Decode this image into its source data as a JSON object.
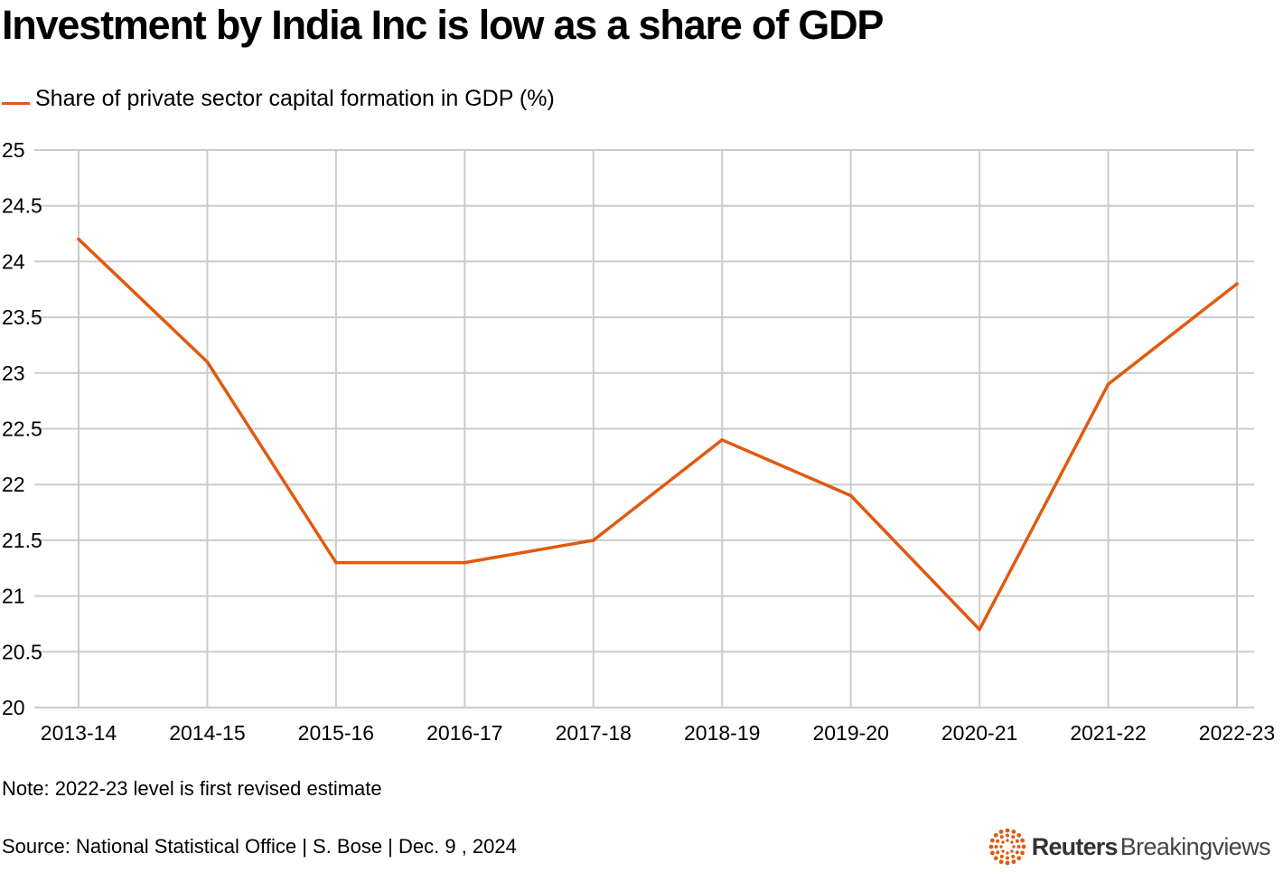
{
  "title": "Investment by India Inc is low as a share of GDP",
  "legend": {
    "label": "Share of private sector capital formation in GDP (%)"
  },
  "note": "Note: 2022-23 level is first revised estimate",
  "source": "Source: National Statistical Office | S. Bose | Dec. 9 , 2024",
  "logo": {
    "name_bold": "Reuters",
    "name_light": "Breakingviews",
    "icon": "reuters-dots-logo"
  },
  "colors": {
    "series": "#e05a10",
    "grid": "#cccccc",
    "text": "#000000",
    "background": "#ffffff"
  },
  "chart_data": {
    "type": "line",
    "title": "Investment by India Inc is low as a share of GDP",
    "xlabel": "",
    "ylabel": "",
    "categories": [
      "2013-14",
      "2014-15",
      "2015-16",
      "2016-17",
      "2017-18",
      "2018-19",
      "2019-20",
      "2020-21",
      "2021-22",
      "2022-23"
    ],
    "series": [
      {
        "name": "Share of private sector capital formation in GDP (%)",
        "values": [
          24.2,
          23.1,
          21.3,
          21.3,
          21.5,
          22.4,
          21.9,
          20.7,
          22.9,
          23.8
        ]
      }
    ],
    "ylim": [
      20,
      25
    ],
    "yticks": [
      "20",
      "20.5",
      "21",
      "21.5",
      "22",
      "22.5",
      "23",
      "23.5",
      "24",
      "24.5",
      "25"
    ],
    "grid": true,
    "legend_position": "top-left"
  }
}
